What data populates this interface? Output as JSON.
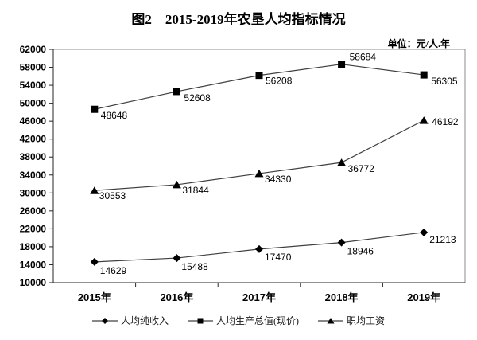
{
  "figure": {
    "title": "图2　2015-2019年农垦人均指标情况",
    "unit_label": "单位：元/人.年"
  },
  "chart_data": {
    "type": "line",
    "title": "图2　2015-2019年农垦人均指标情况",
    "unit": "元/人.年",
    "categories": [
      "2015年",
      "2016年",
      "2017年",
      "2018年",
      "2019年"
    ],
    "series": [
      {
        "name": "人均纯收入",
        "marker": "diamond",
        "values": [
          14629,
          15488,
          17470,
          18946,
          21213
        ]
      },
      {
        "name": "人均生产总值(现价)",
        "marker": "square",
        "values": [
          48648,
          52608,
          56208,
          58684,
          56305
        ]
      },
      {
        "name": "职均工资",
        "marker": "triangle",
        "values": [
          30553,
          31844,
          34330,
          36772,
          46192
        ]
      }
    ],
    "xlabel": "",
    "ylabel": "",
    "ylim": [
      10000,
      62000
    ],
    "ytick_step": 4000,
    "grid": false,
    "data_labels": true,
    "legend_position": "bottom",
    "line_color": "#404040",
    "marker_color": "#000000",
    "border_color": "#8c8c8c",
    "axis_color": "#262626"
  }
}
